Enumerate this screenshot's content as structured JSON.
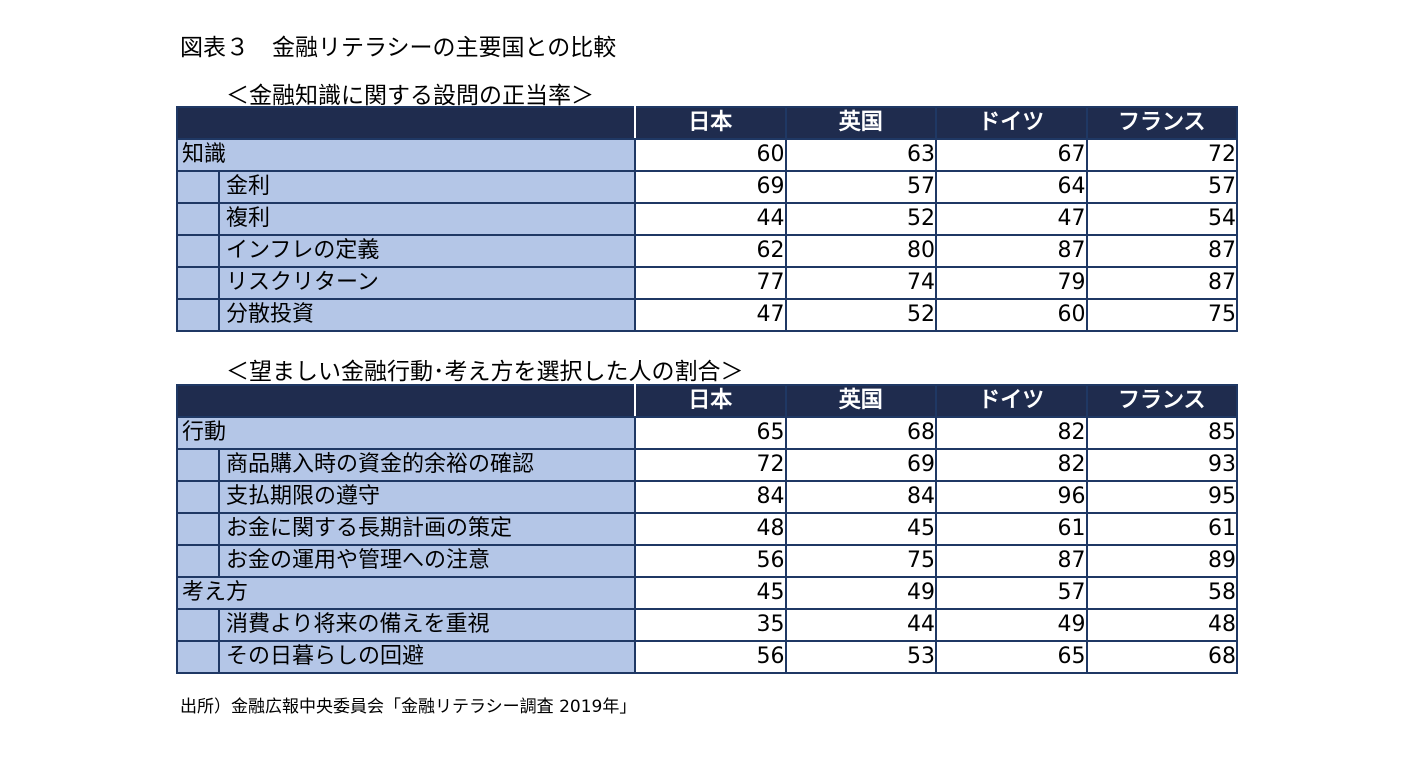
{
  "title": "図表３　金融リテラシーの主要国との比較",
  "section1": {
    "title": "＜金融知識に関する設問の正当率＞",
    "columns": [
      "日本",
      "英国",
      "ドイツ",
      "フランス"
    ],
    "rows": [
      {
        "label": "知識",
        "level": "category",
        "values": [
          60,
          63,
          67,
          72
        ]
      },
      {
        "label": "金利",
        "level": "item",
        "values": [
          69,
          57,
          64,
          57
        ]
      },
      {
        "label": "複利",
        "level": "item",
        "values": [
          44,
          52,
          47,
          54
        ]
      },
      {
        "label": "インフレの定義",
        "level": "item",
        "values": [
          62,
          80,
          87,
          87
        ]
      },
      {
        "label": "リスクリターン",
        "level": "item",
        "values": [
          77,
          74,
          79,
          87
        ]
      },
      {
        "label": "分散投資",
        "level": "item",
        "values": [
          47,
          52,
          60,
          75
        ]
      }
    ]
  },
  "section2": {
    "title": "＜望ましい金融行動･考え方を選択した人の割合＞",
    "columns": [
      "日本",
      "英国",
      "ドイツ",
      "フランス"
    ],
    "rows": [
      {
        "label": "行動",
        "level": "category",
        "values": [
          65,
          68,
          82,
          85
        ]
      },
      {
        "label": "商品購入時の資金的余裕の確認",
        "level": "item",
        "values": [
          72,
          69,
          82,
          93
        ]
      },
      {
        "label": "支払期限の遵守",
        "level": "item",
        "values": [
          84,
          84,
          96,
          95
        ]
      },
      {
        "label": "お金に関する長期計画の策定",
        "level": "item",
        "values": [
          48,
          45,
          61,
          61
        ]
      },
      {
        "label": "お金の運用や管理への注意",
        "level": "item",
        "values": [
          56,
          75,
          87,
          89
        ]
      },
      {
        "label": "考え方",
        "level": "category",
        "values": [
          45,
          49,
          57,
          58
        ]
      },
      {
        "label": "消費より将来の備えを重視",
        "level": "item",
        "values": [
          35,
          44,
          49,
          48
        ]
      },
      {
        "label": "その日暮らしの回避",
        "level": "item",
        "values": [
          56,
          53,
          65,
          68
        ]
      }
    ]
  },
  "source": "出所）金融広報中央委員会「金融リテラシー調査 2019年」"
}
